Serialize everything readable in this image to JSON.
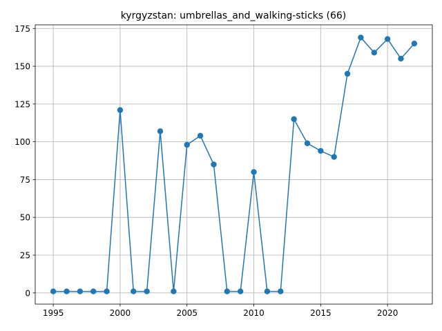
{
  "chart_data": {
    "type": "line",
    "title": "kyrgyzstan: umbrellas_and_walking-sticks (66)",
    "xlabel": "",
    "ylabel": "",
    "xlim": [
      1993.65,
      2023.35
    ],
    "ylim": [
      -7.4,
      177.4
    ],
    "grid": true,
    "x_ticks": [
      1995,
      2000,
      2005,
      2010,
      2015,
      2020
    ],
    "y_ticks": [
      0,
      25,
      50,
      75,
      100,
      125,
      150,
      175
    ],
    "color": "#1f77b4",
    "series": [
      {
        "x": [
          1995,
          1996,
          1997,
          1998,
          1999,
          2000,
          2001,
          2002,
          2003,
          2004,
          2005,
          2006,
          2007,
          2008,
          2009,
          2010,
          2011,
          2012,
          2013,
          2014,
          2015,
          2016,
          2017,
          2018,
          2019,
          2020,
          2021,
          2022
        ],
        "y": [
          1,
          1,
          1,
          1,
          1,
          121,
          1,
          1,
          107,
          1,
          98,
          104,
          85,
          1,
          1,
          80,
          1,
          1,
          115,
          99,
          94,
          90,
          145,
          169,
          159,
          168,
          155,
          165
        ]
      }
    ]
  }
}
